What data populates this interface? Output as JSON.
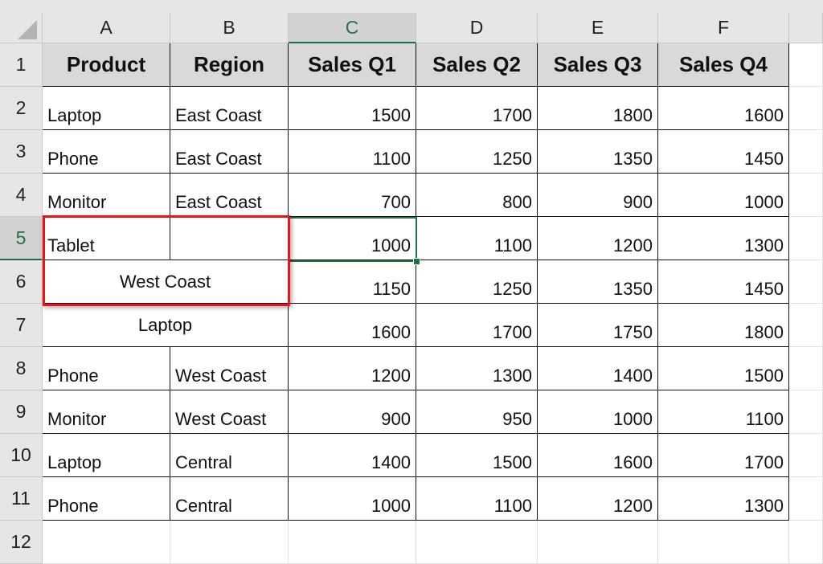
{
  "columns": [
    "A",
    "B",
    "C",
    "D",
    "E",
    "F",
    ""
  ],
  "rows": [
    "1",
    "2",
    "3",
    "4",
    "5",
    "6",
    "7",
    "8",
    "9",
    "10",
    "11",
    "12"
  ],
  "selected_cell": "C5",
  "accent_color": "#217346",
  "highlight_color": "#e8141a",
  "headers": [
    "Product",
    "Region",
    "Sales Q1",
    "Sales Q2",
    "Sales Q3",
    "Sales Q4"
  ],
  "data_rows": [
    [
      "Laptop",
      "East Coast",
      "1500",
      "1700",
      "1800",
      "1600"
    ],
    [
      "Phone",
      "East Coast",
      "1100",
      "1250",
      "1350",
      "1450"
    ],
    [
      "Monitor",
      "East Coast",
      "700",
      "800",
      "900",
      "1000"
    ],
    [
      "Tablet",
      "",
      "1000",
      "1100",
      "1200",
      "1300"
    ],
    [
      "West Coast",
      "",
      "1150",
      "1250",
      "1350",
      "1450"
    ],
    [
      "Laptop",
      "West Coast",
      "1600",
      "1700",
      "1750",
      "1800"
    ],
    [
      "Phone",
      "West Coast",
      "1200",
      "1300",
      "1400",
      "1500"
    ],
    [
      "Monitor",
      "West Coast",
      "900",
      "950",
      "1000",
      "1100"
    ],
    [
      "Laptop",
      "Central",
      "1400",
      "1500",
      "1600",
      "1700"
    ],
    [
      "Phone",
      "Central",
      "1000",
      "1100",
      "1200",
      "1300"
    ]
  ],
  "merged_rows": [
    4,
    5
  ]
}
